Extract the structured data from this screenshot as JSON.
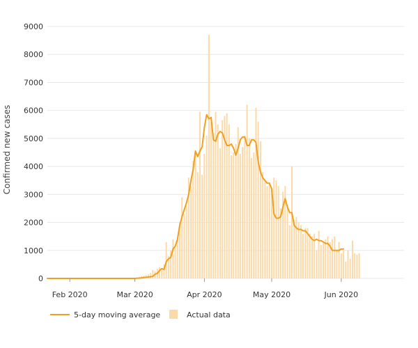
{
  "colors": {
    "line": "#f0a020",
    "bar": "#fbd9a8",
    "grid": "#e8e8e8",
    "axis_text": "#333333"
  },
  "chart_data": {
    "type": "bar",
    "title": "",
    "xlabel": "",
    "ylabel": "Confirmed new cases",
    "ylim": [
      0,
      9000
    ],
    "yticks": [
      0,
      1000,
      2000,
      3000,
      4000,
      5000,
      6000,
      7000,
      8000,
      9000
    ],
    "xlim": [
      "2020-01-22",
      "2020-06-29"
    ],
    "xticks": [
      {
        "label": "Feb 2020",
        "date": "2020-02-01"
      },
      {
        "label": "Mar 2020",
        "date": "2020-03-01"
      },
      {
        "label": "Apr 2020",
        "date": "2020-04-01"
      },
      {
        "label": "May 2020",
        "date": "2020-05-01"
      },
      {
        "label": "Jun 2020",
        "date": "2020-06-01"
      }
    ],
    "grid": true,
    "legend_position": "bottom-left",
    "x_start_date": "2020-01-22",
    "series": [
      {
        "name": "5-day moving average",
        "type": "line",
        "values": [
          0,
          0,
          0,
          0,
          0,
          0,
          0,
          0,
          0,
          0,
          0,
          0,
          0,
          0,
          0,
          0,
          0,
          0,
          0,
          0,
          0,
          0,
          0,
          0,
          0,
          0,
          0,
          0,
          0,
          0,
          0,
          0,
          0,
          0,
          0,
          0,
          0,
          0,
          0,
          0,
          5,
          10,
          20,
          30,
          40,
          50,
          60,
          70,
          150,
          180,
          280,
          350,
          320,
          600,
          700,
          750,
          1050,
          1150,
          1400,
          1900,
          2200,
          2450,
          2700,
          3000,
          3500,
          3900,
          4550,
          4350,
          4550,
          4700,
          5400,
          5850,
          5700,
          5750,
          4950,
          4900,
          5150,
          5250,
          5200,
          4950,
          4750,
          4750,
          4800,
          4650,
          4400,
          4650,
          4950,
          5050,
          5050,
          4750,
          4750,
          4950,
          4950,
          4850,
          4150,
          3800,
          3600,
          3500,
          3400,
          3400,
          3200,
          2300,
          2150,
          2150,
          2200,
          2550,
          2850,
          2550,
          2350,
          2350,
          1900,
          1800,
          1750,
          1750,
          1700,
          1700,
          1600,
          1500,
          1400,
          1350,
          1400,
          1350,
          1350,
          1300,
          1250,
          1250,
          1150,
          1000,
          1000,
          1000,
          1000,
          1050,
          1050
        ]
      },
      {
        "name": "Actual data",
        "type": "bar",
        "values": [
          0,
          0,
          0,
          0,
          0,
          0,
          0,
          0,
          0,
          0,
          0,
          0,
          0,
          0,
          0,
          0,
          0,
          0,
          0,
          0,
          0,
          0,
          0,
          0,
          0,
          0,
          0,
          0,
          0,
          0,
          0,
          0,
          0,
          0,
          0,
          0,
          0,
          0,
          0,
          20,
          40,
          60,
          80,
          100,
          120,
          150,
          200,
          300,
          250,
          350,
          400,
          300,
          500,
          1300,
          800,
          1000,
          1400,
          1100,
          1400,
          2000,
          2900,
          2300,
          2600,
          3600,
          3300,
          4200,
          4500,
          3800,
          5950,
          3700,
          4450,
          5100,
          8700,
          5600,
          5200,
          5950,
          5500,
          4650,
          5650,
          5800,
          5900,
          5500,
          4400,
          4500,
          4800,
          5400,
          4450,
          4700,
          5100,
          6200,
          5000,
          4300,
          4500,
          6100,
          5600,
          4900,
          3800,
          3500,
          3300,
          3400,
          3200,
          3600,
          3500,
          3300,
          2500,
          3100,
          3300,
          2600,
          1900,
          4000,
          2100,
          2200,
          2000,
          1900,
          1600,
          1800,
          1800,
          1600,
          1500,
          1600,
          1000,
          1700,
          1200,
          1300,
          1400,
          1500,
          1300,
          1400,
          1500,
          1000,
          1300,
          900,
          1000,
          600,
          1000,
          700,
          1350,
          900,
          850,
          900
        ]
      }
    ]
  }
}
